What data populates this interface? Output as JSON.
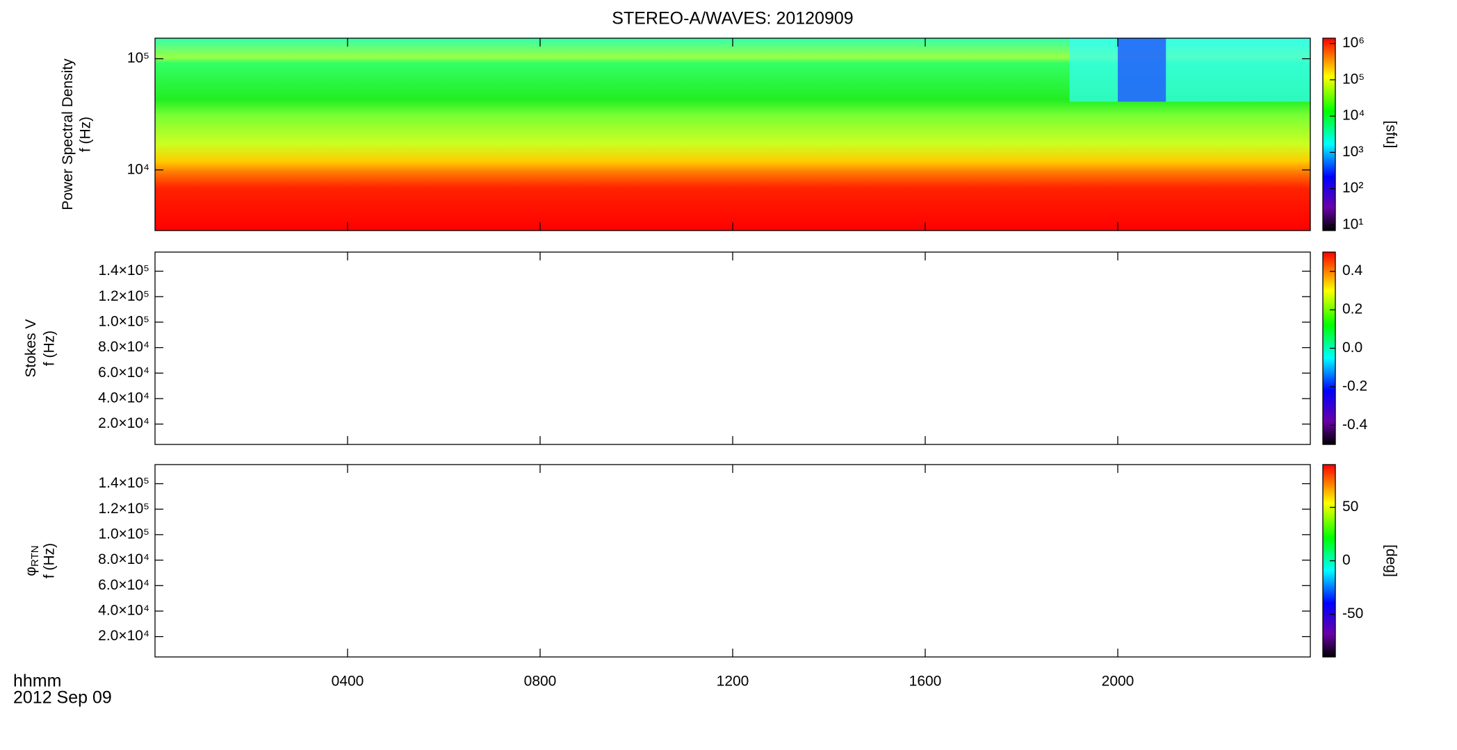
{
  "chart_data": [
    {
      "type": "spectrogram",
      "title": "STEREO-A/WAVES: 20120909",
      "ylabel": [
        "Power Spectral Density",
        "f (Hz)"
      ],
      "log_y": true,
      "ylim": [
        2850,
        153000
      ],
      "yticks": [
        {
          "value": 10000,
          "label": "10⁴"
        },
        {
          "value": 100000,
          "label": "10⁵"
        }
      ],
      "colorbar": {
        "label": "[sfu]",
        "log": true,
        "lim": [
          7,
          1400000
        ],
        "ticks": [
          {
            "value": 10,
            "label": "10¹"
          },
          {
            "value": 100,
            "label": "10²"
          },
          {
            "value": 1000,
            "label": "10³"
          },
          {
            "value": 10000,
            "label": "10⁴"
          },
          {
            "value": 100000,
            "label": "10⁵"
          },
          {
            "value": 1000000,
            "label": "10⁶"
          }
        ]
      }
    },
    {
      "type": "spectrogram",
      "ylabel": [
        "Stokes V",
        "f (Hz)"
      ],
      "log_y": false,
      "ylim": [
        4000,
        155000
      ],
      "yticks": [
        {
          "value": 20000,
          "label": "2.0×10⁴"
        },
        {
          "value": 40000,
          "label": "4.0×10⁴"
        },
        {
          "value": 60000,
          "label": "6.0×10⁴"
        },
        {
          "value": 80000,
          "label": "8.0×10⁴"
        },
        {
          "value": 100000,
          "label": "1.0×10⁵"
        },
        {
          "value": 120000,
          "label": "1.2×10⁵"
        },
        {
          "value": 140000,
          "label": "1.4×10⁵"
        }
      ],
      "colorbar": {
        "log": false,
        "lim": [
          -0.5,
          0.5
        ],
        "ticks": [
          {
            "value": -0.4,
            "label": "-0.4"
          },
          {
            "value": -0.2,
            "label": "-0.2"
          },
          {
            "value": 0,
            "label": "0.0"
          },
          {
            "value": 0.2,
            "label": "0.2"
          },
          {
            "value": 0.4,
            "label": "0.4"
          }
        ]
      }
    },
    {
      "type": "spectrogram",
      "ylabel": [
        "φ",
        "f (Hz)"
      ],
      "ylabel_sub": "RTN",
      "log_y": false,
      "ylim": [
        4000,
        155000
      ],
      "yticks": [
        {
          "value": 20000,
          "label": "2.0×10⁴"
        },
        {
          "value": 40000,
          "label": "4.0×10⁴"
        },
        {
          "value": 60000,
          "label": "6.0×10⁴"
        },
        {
          "value": 80000,
          "label": "8.0×10⁴"
        },
        {
          "value": 100000,
          "label": "1.0×10⁵"
        },
        {
          "value": 120000,
          "label": "1.2×10⁵"
        },
        {
          "value": 140000,
          "label": "1.4×10⁵"
        }
      ],
      "colorbar": {
        "label": "[deg]",
        "log": false,
        "lim": [
          -90,
          90
        ],
        "ticks": [
          -50,
          0,
          50
        ]
      },
      "xlabel": "hhmm",
      "date": "2012 Sep 09",
      "xlim": [
        0,
        24
      ],
      "xticks": [
        {
          "value": 4,
          "label": "0400"
        },
        {
          "value": 8,
          "label": "0800"
        },
        {
          "value": 12,
          "label": "1200"
        },
        {
          "value": 16,
          "label": "1600"
        },
        {
          "value": 20,
          "label": "2000"
        }
      ]
    }
  ]
}
